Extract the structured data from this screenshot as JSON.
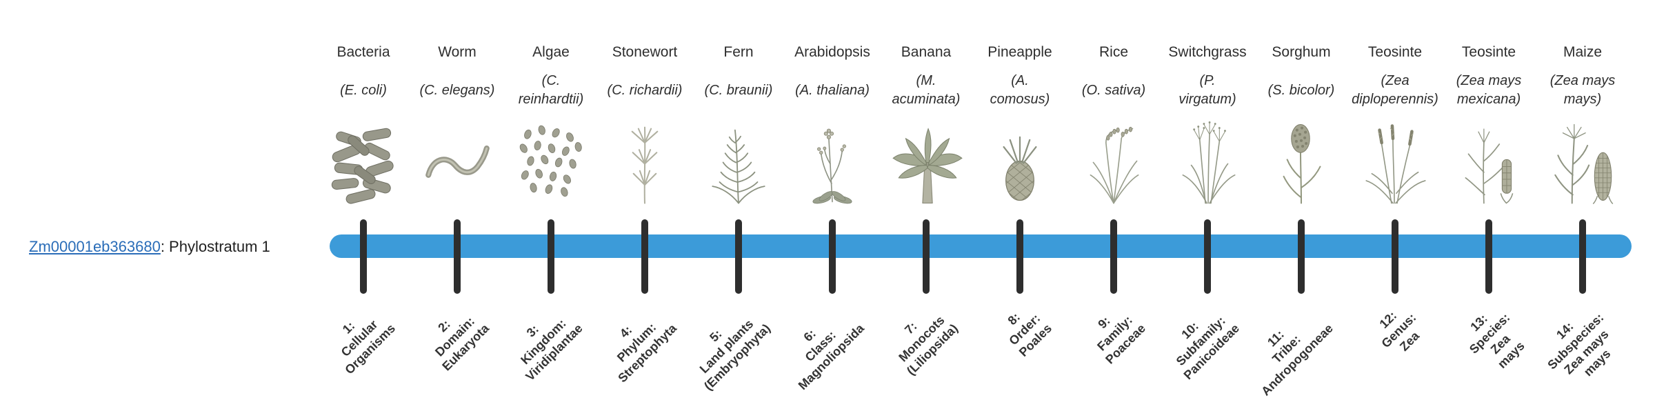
{
  "gene_label": {
    "link_text": "Zm00001eb363680",
    "suffix": ": Phylostratum 1",
    "link_color": "#2A6DB8"
  },
  "timeline": {
    "bar_color": "#3C9BD9",
    "tick_color": "#2E2E2E"
  },
  "organisms": [
    {
      "name": "Bacteria",
      "sci_lines": [
        "(E. coli)"
      ],
      "icon": "bacteria-icon",
      "stratum_lines": [
        "1:",
        "Cellular",
        "Organisms"
      ]
    },
    {
      "name": "Worm",
      "sci_lines": [
        "(C. elegans)"
      ],
      "icon": "worm-icon",
      "stratum_lines": [
        "2:",
        "Domain:",
        "Eukaryota"
      ]
    },
    {
      "name": "Algae",
      "sci_lines": [
        "(C.",
        "reinhardtii)"
      ],
      "icon": "algae-icon",
      "stratum_lines": [
        "3:",
        "Kingdom:",
        "Viridiplantae"
      ]
    },
    {
      "name": "Stonewort",
      "sci_lines": [
        "(C. richardii)"
      ],
      "icon": "stonewort-icon",
      "stratum_lines": [
        "4:",
        "Phylum:",
        "Streptophyta"
      ]
    },
    {
      "name": "Fern",
      "sci_lines": [
        "(C. braunii)"
      ],
      "icon": "fern-icon",
      "stratum_lines": [
        "5:",
        "Land plants",
        "(Embryophyta)"
      ]
    },
    {
      "name": "Arabidopsis",
      "sci_lines": [
        "(A. thaliana)"
      ],
      "icon": "arabidopsis-icon",
      "stratum_lines": [
        "6:",
        "Class:",
        "Magnoliopsida"
      ]
    },
    {
      "name": "Banana",
      "sci_lines": [
        "(M.",
        "acuminata)"
      ],
      "icon": "banana-icon",
      "stratum_lines": [
        "7:",
        "Monocots",
        "(Liliopsida)"
      ]
    },
    {
      "name": "Pineapple",
      "sci_lines": [
        "(A.",
        "comosus)"
      ],
      "icon": "pineapple-icon",
      "stratum_lines": [
        "8:",
        "Order:",
        "Poales"
      ]
    },
    {
      "name": "Rice",
      "sci_lines": [
        "(O. sativa)"
      ],
      "icon": "rice-icon",
      "stratum_lines": [
        "9:",
        "Family:",
        "Poaceae"
      ]
    },
    {
      "name": "Switchgrass",
      "sci_lines": [
        "(P.",
        "virgatum)"
      ],
      "icon": "switchgrass-icon",
      "stratum_lines": [
        "10:",
        "Subfamily:",
        "Panicoideae"
      ]
    },
    {
      "name": "Sorghum",
      "sci_lines": [
        "(S. bicolor)"
      ],
      "icon": "sorghum-icon",
      "stratum_lines": [
        "11:",
        "Tribe:",
        "Andropogoneae"
      ]
    },
    {
      "name": "Teosinte",
      "sci_lines": [
        "(Zea",
        "diploperennis)"
      ],
      "icon": "teosinte-diplo-icon",
      "stratum_lines": [
        "12:",
        "Genus:",
        "Zea"
      ]
    },
    {
      "name": "Teosinte",
      "sci_lines": [
        "(Zea mays",
        "mexicana)"
      ],
      "icon": "teosinte-mex-icon",
      "stratum_lines": [
        "13:",
        "Species:",
        "Zea",
        "mays"
      ]
    },
    {
      "name": "Maize",
      "sci_lines": [
        "(Zea mays",
        "mays)"
      ],
      "icon": "maize-icon",
      "stratum_lines": [
        "14:",
        "Subspecies:",
        "Zea mays",
        "mays"
      ]
    }
  ]
}
